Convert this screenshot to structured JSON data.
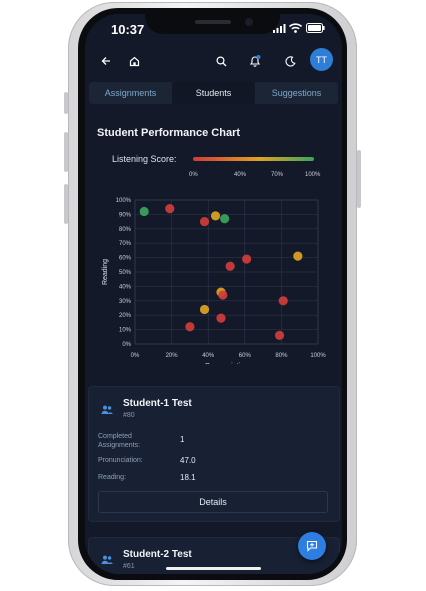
{
  "status_bar": {
    "time": "10:37"
  },
  "header": {
    "avatar_initials": "TT"
  },
  "tabs": [
    {
      "label": "Assignments",
      "active": false
    },
    {
      "label": "Students",
      "active": true
    },
    {
      "label": "Suggestions",
      "active": false
    }
  ],
  "chart_data": {
    "type": "scatter",
    "title": "Student Performance Chart",
    "color_legend": {
      "label": "Listening Score:",
      "ticks": [
        "0%",
        "40%",
        "70%",
        "100%"
      ],
      "gradient": [
        "#d13c3c",
        "#e0a323",
        "#3ca45c"
      ]
    },
    "xlabel": "Pronunciation",
    "ylabel": "Reading",
    "xlim": [
      0,
      100
    ],
    "ylim": [
      0,
      100
    ],
    "x_ticks": [
      "0%",
      "20%",
      "40%",
      "60%",
      "80%",
      "100%"
    ],
    "y_ticks": [
      "0%",
      "10%",
      "20%",
      "30%",
      "40%",
      "50%",
      "60%",
      "70%",
      "80%",
      "90%",
      "100%"
    ],
    "grid": true,
    "points": [
      {
        "x": 5,
        "y": 92,
        "color": "#3ca45c"
      },
      {
        "x": 19,
        "y": 94,
        "color": "#d13c3c"
      },
      {
        "x": 38,
        "y": 85,
        "color": "#d13c3c"
      },
      {
        "x": 44,
        "y": 89,
        "color": "#e0a323"
      },
      {
        "x": 49,
        "y": 87,
        "color": "#3ca45c"
      },
      {
        "x": 61,
        "y": 59,
        "color": "#d13c3c"
      },
      {
        "x": 52,
        "y": 54,
        "color": "#d13c3c"
      },
      {
        "x": 89,
        "y": 61,
        "color": "#e0a323"
      },
      {
        "x": 47,
        "y": 36,
        "color": "#e0a323"
      },
      {
        "x": 48,
        "y": 34,
        "color": "#d13c3c"
      },
      {
        "x": 81,
        "y": 30,
        "color": "#d13c3c"
      },
      {
        "x": 38,
        "y": 24,
        "color": "#e0a323"
      },
      {
        "x": 47,
        "y": 18,
        "color": "#d13c3c"
      },
      {
        "x": 30,
        "y": 12,
        "color": "#d13c3c"
      },
      {
        "x": 79,
        "y": 6,
        "color": "#d13c3c"
      }
    ]
  },
  "students": [
    {
      "name": "Student-1 Test",
      "id": "#80",
      "completed_label": "Completed Assignments:",
      "completed_value": "1",
      "pronunciation_label": "Pronunciation:",
      "pronunciation_value": "47.0",
      "reading_label": "Reading:",
      "reading_value": "18.1",
      "details_label": "Details"
    },
    {
      "name": "Student-2 Test",
      "id": "#61"
    }
  ],
  "colors": {
    "background": "#14192a",
    "card": "#172133",
    "accent": "#2d7ee0"
  }
}
